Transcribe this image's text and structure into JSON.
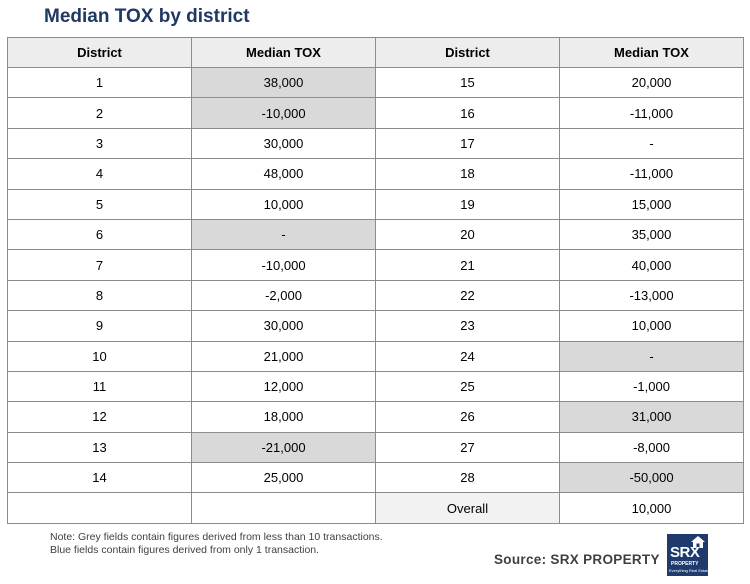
{
  "title": "Median TOX by district",
  "headers": [
    "District",
    "Median TOX",
    "District",
    "Median TOX"
  ],
  "chart_data": {
    "type": "table",
    "title": "Median TOX by district",
    "columns": [
      "District",
      "Median TOX",
      "District",
      "Median TOX"
    ],
    "rows": [
      {
        "left_district": "1",
        "left_value": "38,000",
        "left_grey": true,
        "right_district": "15",
        "right_value": "20,000",
        "right_grey": false
      },
      {
        "left_district": "2",
        "left_value": "-10,000",
        "left_grey": true,
        "right_district": "16",
        "right_value": "-11,000",
        "right_grey": false
      },
      {
        "left_district": "3",
        "left_value": "30,000",
        "left_grey": false,
        "right_district": "17",
        "right_value": "-",
        "right_grey": false
      },
      {
        "left_district": "4",
        "left_value": "48,000",
        "left_grey": false,
        "right_district": "18",
        "right_value": "-11,000",
        "right_grey": false
      },
      {
        "left_district": "5",
        "left_value": "10,000",
        "left_grey": false,
        "right_district": "19",
        "right_value": "15,000",
        "right_grey": false
      },
      {
        "left_district": "6",
        "left_value": "-",
        "left_grey": true,
        "right_district": "20",
        "right_value": "35,000",
        "right_grey": false
      },
      {
        "left_district": "7",
        "left_value": "-10,000",
        "left_grey": false,
        "right_district": "21",
        "right_value": "40,000",
        "right_grey": false
      },
      {
        "left_district": "8",
        "left_value": "-2,000",
        "left_grey": false,
        "right_district": "22",
        "right_value": "-13,000",
        "right_grey": false
      },
      {
        "left_district": "9",
        "left_value": "30,000",
        "left_grey": false,
        "right_district": "23",
        "right_value": "10,000",
        "right_grey": false
      },
      {
        "left_district": "10",
        "left_value": "21,000",
        "left_grey": false,
        "right_district": "24",
        "right_value": "-",
        "right_grey": true
      },
      {
        "left_district": "11",
        "left_value": "12,000",
        "left_grey": false,
        "right_district": "25",
        "right_value": "-1,000",
        "right_grey": false
      },
      {
        "left_district": "12",
        "left_value": "18,000",
        "left_grey": false,
        "right_district": "26",
        "right_value": "31,000",
        "right_grey": true
      },
      {
        "left_district": "13",
        "left_value": "-21,000",
        "left_grey": true,
        "right_district": "27",
        "right_value": "-8,000",
        "right_grey": false
      },
      {
        "left_district": "14",
        "left_value": "25,000",
        "left_grey": false,
        "right_district": "28",
        "right_value": "-50,000",
        "right_grey": true
      }
    ],
    "overall": {
      "label": "Overall",
      "value": "10,000"
    }
  },
  "colors": {
    "title": "#1f3864",
    "header_bg": "#ededed",
    "grey_cell": "#d9d9d9",
    "overall_label_bg": "#f2f2f2",
    "logo_bg": "#1f3b6e"
  },
  "note_lines": [
    "Note: Grey fields contain figures derived from less than 10 transactions.",
    "Blue fields contain figures derived from only 1 transaction."
  ],
  "source": "Source:  SRX PROPERTY",
  "logo": {
    "wordmark": "SRX",
    "subword": "PROPERTY",
    "tagline": "Everything Real Estate",
    "icon": "house-icon"
  }
}
